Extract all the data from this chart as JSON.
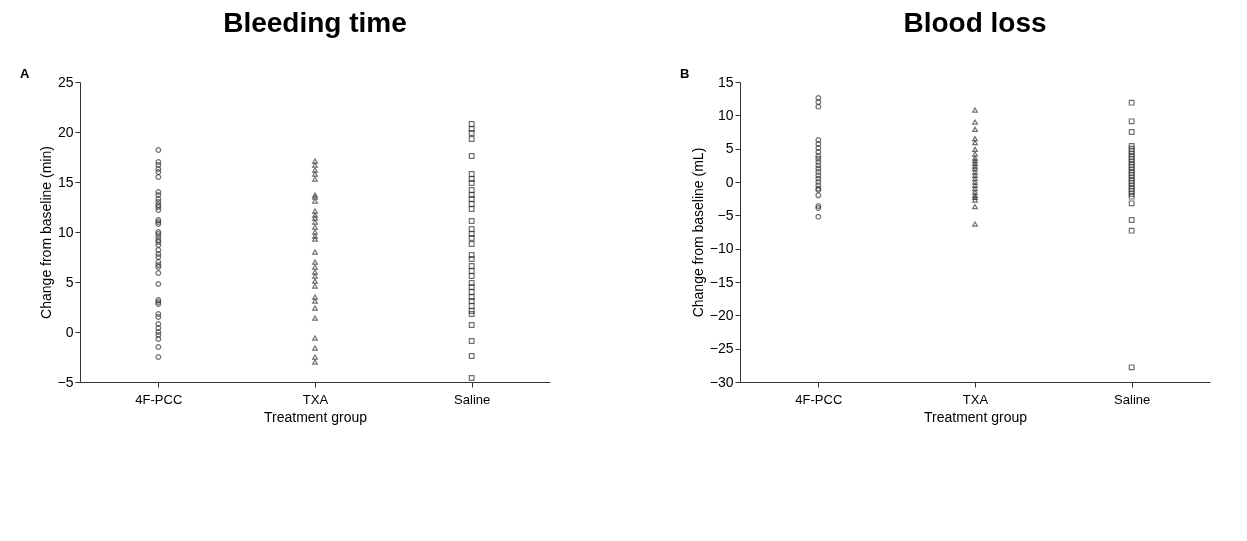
{
  "chart_data": [
    {
      "type": "scatter",
      "title": "Bleeding time",
      "xlabel": "Treatment group",
      "ylabel": "Change from baseline (min)",
      "annotations": [
        "A"
      ],
      "categories": [
        "4F-PCC",
        "TXA",
        "Saline"
      ],
      "ylim": [
        -5,
        25
      ],
      "yticks": [
        -5,
        0,
        5,
        10,
        15,
        20,
        25
      ],
      "grid": false,
      "legend": false,
      "series": [
        {
          "color": "#333333",
          "marker": "circle",
          "x": [
            "4F-PCC",
            "4F-PCC",
            "4F-PCC",
            "4F-PCC",
            "4F-PCC",
            "4F-PCC",
            "4F-PCC",
            "4F-PCC",
            "4F-PCC",
            "4F-PCC",
            "4F-PCC",
            "4F-PCC",
            "4F-PCC",
            "4F-PCC",
            "4F-PCC",
            "4F-PCC",
            "4F-PCC",
            "4F-PCC",
            "4F-PCC",
            "4F-PCC",
            "4F-PCC",
            "4F-PCC",
            "4F-PCC",
            "4F-PCC",
            "4F-PCC",
            "4F-PCC",
            "4F-PCC",
            "4F-PCC",
            "4F-PCC",
            "4F-PCC",
            "4F-PCC",
            "4F-PCC",
            "4F-PCC",
            "4F-PCC",
            "4F-PCC",
            "4F-PCC",
            "4F-PCC",
            "4F-PCC",
            "4F-PCC",
            "4F-PCC",
            "4F-PCC",
            "4F-PCC"
          ],
          "values": [
            18.2,
            17,
            16.7,
            16.3,
            16,
            15.5,
            14,
            13.7,
            13.3,
            13,
            12.7,
            12.5,
            12.2,
            11.2,
            11,
            10.8,
            10,
            9.8,
            9.5,
            9.2,
            9,
            8.7,
            8.2,
            7.8,
            7.5,
            7,
            6.7,
            6.5,
            5.9,
            4.8,
            3.2,
            3,
            2.8,
            1.8,
            1.5,
            0.8,
            0.4,
            0,
            -0.3,
            -0.7,
            -1.5,
            -2.5
          ]
        },
        {
          "color": "#333333",
          "marker": "triangle",
          "x": [
            "TXA",
            "TXA",
            "TXA",
            "TXA",
            "TXA",
            "TXA",
            "TXA",
            "TXA",
            "TXA",
            "TXA",
            "TXA",
            "TXA",
            "TXA",
            "TXA",
            "TXA",
            "TXA",
            "TXA",
            "TXA",
            "TXA",
            "TXA",
            "TXA",
            "TXA",
            "TXA",
            "TXA",
            "TXA",
            "TXA",
            "TXA",
            "TXA",
            "TXA",
            "TXA",
            "TXA"
          ],
          "values": [
            17.1,
            16.7,
            16.2,
            15.8,
            15.3,
            13.7,
            13.5,
            13.1,
            12.1,
            11.7,
            11.4,
            11,
            10.5,
            10,
            9.6,
            9.3,
            8,
            7,
            6.5,
            6,
            5.6,
            5.1,
            4.6,
            3.5,
            3.1,
            2.4,
            1.4,
            -0.6,
            -1.6,
            -2.5,
            -3
          ]
        },
        {
          "color": "#333333",
          "marker": "square",
          "x": [
            "Saline",
            "Saline",
            "Saline",
            "Saline",
            "Saline",
            "Saline",
            "Saline",
            "Saline",
            "Saline",
            "Saline",
            "Saline",
            "Saline",
            "Saline",
            "Saline",
            "Saline",
            "Saline",
            "Saline",
            "Saline",
            "Saline",
            "Saline",
            "Saline",
            "Saline",
            "Saline",
            "Saline",
            "Saline",
            "Saline",
            "Saline",
            "Saline",
            "Saline",
            "Saline",
            "Saline",
            "Saline",
            "Saline",
            "Saline",
            "Saline"
          ],
          "values": [
            20.8,
            20.3,
            19.9,
            19.3,
            17.6,
            15.8,
            15.3,
            14.9,
            14.2,
            13.7,
            13.3,
            12.8,
            12.3,
            11.1,
            10.3,
            9.8,
            9.4,
            8.8,
            7.7,
            7.3,
            6.6,
            6.1,
            5.6,
            4.9,
            4.5,
            4,
            3.5,
            3.1,
            2.6,
            2.1,
            1.8,
            0.7,
            -0.9,
            -2.4,
            -4.6
          ]
        }
      ]
    },
    {
      "type": "scatter",
      "title": "Blood loss",
      "xlabel": "Treatment group",
      "ylabel": "Change from baseline (mL)",
      "annotations": [
        "B"
      ],
      "categories": [
        "4F-PCC",
        "TXA",
        "Saline"
      ],
      "ylim": [
        -30,
        15
      ],
      "yticks": [
        -30,
        -25,
        -20,
        -15,
        -10,
        -5,
        0,
        5,
        10,
        15
      ],
      "grid": false,
      "legend": false,
      "series": [
        {
          "color": "#333333",
          "marker": "circle",
          "x": [
            "4F-PCC",
            "4F-PCC",
            "4F-PCC",
            "4F-PCC",
            "4F-PCC",
            "4F-PCC",
            "4F-PCC",
            "4F-PCC",
            "4F-PCC",
            "4F-PCC",
            "4F-PCC",
            "4F-PCC",
            "4F-PCC",
            "4F-PCC",
            "4F-PCC",
            "4F-PCC",
            "4F-PCC",
            "4F-PCC",
            "4F-PCC",
            "4F-PCC",
            "4F-PCC",
            "4F-PCC",
            "4F-PCC"
          ],
          "values": [
            12.6,
            12,
            11.3,
            6.3,
            5.7,
            5.1,
            4.5,
            3.9,
            3.5,
            3,
            2.5,
            2,
            1.5,
            1,
            0.5,
            0,
            -0.5,
            -1,
            -1.2,
            -2,
            -3.6,
            -3.9,
            -5.2
          ]
        },
        {
          "color": "#333333",
          "marker": "triangle",
          "x": [
            "TXA",
            "TXA",
            "TXA",
            "TXA",
            "TXA",
            "TXA",
            "TXA",
            "TXA",
            "TXA",
            "TXA",
            "TXA",
            "TXA",
            "TXA",
            "TXA",
            "TXA",
            "TXA",
            "TXA",
            "TXA",
            "TXA",
            "TXA",
            "TXA",
            "TXA",
            "TXA",
            "TXA"
          ],
          "values": [
            10.8,
            9,
            7.9,
            6.5,
            5.9,
            4.9,
            4.2,
            3.6,
            3.2,
            2.8,
            2.4,
            2,
            1.5,
            1,
            0.5,
            0,
            -0.5,
            -1,
            -1.5,
            -2,
            -2.3,
            -2.7,
            -3.7,
            -6.3
          ]
        },
        {
          "color": "#333333",
          "marker": "square",
          "x": [
            "Saline",
            "Saline",
            "Saline",
            "Saline",
            "Saline",
            "Saline",
            "Saline",
            "Saline",
            "Saline",
            "Saline",
            "Saline",
            "Saline",
            "Saline",
            "Saline",
            "Saline",
            "Saline",
            "Saline",
            "Saline",
            "Saline",
            "Saline",
            "Saline",
            "Saline",
            "Saline",
            "Saline",
            "Saline",
            "Saline",
            "Saline"
          ],
          "values": [
            11.9,
            9.1,
            7.5,
            5.4,
            5,
            4.6,
            4.2,
            3.8,
            3.4,
            3,
            2.6,
            2.2,
            1.8,
            1.4,
            1,
            0.6,
            0.2,
            -0.2,
            -0.6,
            -1,
            -1.4,
            -1.8,
            -2.2,
            -3.2,
            -5.7,
            -7.3,
            -27.8
          ]
        }
      ]
    }
  ]
}
